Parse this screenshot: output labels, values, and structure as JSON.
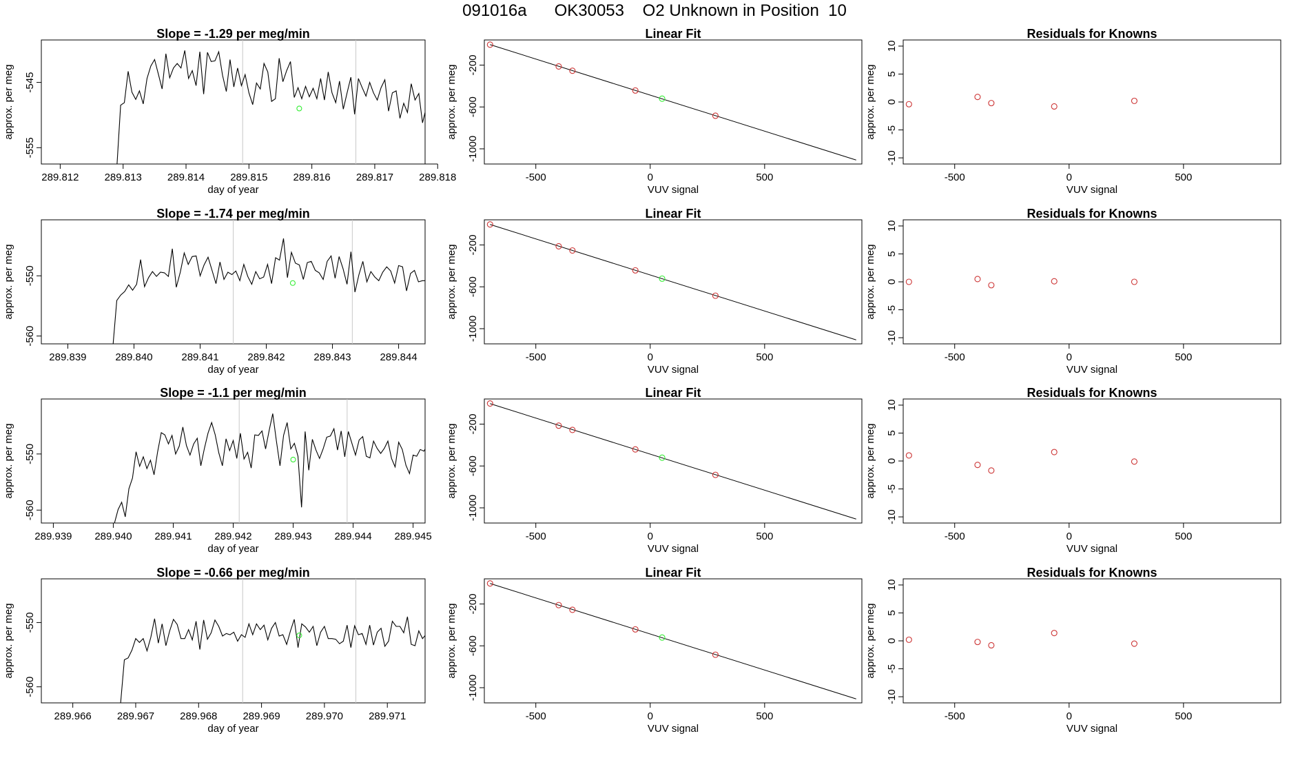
{
  "page_title": "091016a      OK30053    O2 Unknown in Position  10",
  "colors": {
    "trace": "#000000",
    "known_point": "#cc3333",
    "unknown_point": "#33ee33",
    "marker_line": "#c8c8c8",
    "fit_line": "#000000"
  },
  "chart_data": [
    {
      "type": "line",
      "title": "Slope =  -1.29  per meg/min",
      "xlabel": "day of year",
      "ylabel": "approx. per meg",
      "xlim": [
        289.8117,
        289.8178
      ],
      "ylim": [
        -557.5,
        -538.5
      ],
      "xticks": [
        "289.812",
        "289.813",
        "289.814",
        "289.815",
        "289.816",
        "289.817",
        "289.818"
      ],
      "yticks": [
        "-545",
        "-555"
      ],
      "markers_x": [
        289.8149,
        289.8167
      ],
      "unknown_point": {
        "x": 289.8158,
        "y": -549
      },
      "series": [
        {
          "values_start": 289.8129,
          "values_step": 6e-05,
          "values": [
            -558,
            -548.5,
            -548.1,
            -543.3,
            -546.5,
            -547.6,
            -546.3,
            -548.3,
            -544.4,
            -542.5,
            -541.5,
            -543.7,
            -546,
            -540.6,
            -544.3,
            -542.8,
            -542.1,
            -542.8,
            -540.1,
            -544.4,
            -543.2,
            -545.5,
            -540.3,
            -546.8,
            -540.4,
            -541.8,
            -541.7,
            -540.3,
            -543.9,
            -546.4,
            -541.5,
            -545.7,
            -542.8,
            -545.5,
            -543.8,
            -546.6,
            -548.4,
            -545.1,
            -546,
            -542.1,
            -543.4,
            -547.9,
            -547.5,
            -541.3,
            -544.9,
            -543.2,
            -541.8,
            -547.3,
            -545.8,
            -547.5,
            -545.6,
            -547.2,
            -545.9,
            -547.5,
            -544.4,
            -547.7,
            -543.4,
            -546.6,
            -548.1,
            -544.8,
            -549.1,
            -546.6,
            -544.2,
            -549.9,
            -544.4,
            -545.8,
            -547.1,
            -545,
            -546.6,
            -547.7,
            -545.8,
            -544.6,
            -549.4,
            -546.6,
            -546.3,
            -550.5,
            -548.2,
            -549.6,
            -545.2,
            -547.7,
            -546.7,
            -551.2,
            -548.8,
            -544,
            -550.7,
            -547.8,
            -547.5,
            -548.8,
            -548.9,
            -549.2,
            -546.6,
            -550,
            -550.2,
            -548.6,
            -549.7,
            -547.8,
            -545.4,
            -545.7,
            -556,
            -557.8,
            -549.3,
            -550.5,
            -550.3,
            -551.7,
            -550.3,
            -553.8,
            -552.1,
            -550.5,
            -549.5,
            -554.4,
            -554.1,
            -549.3,
            -551,
            -553.7,
            -551.6,
            -554.1,
            -549.3,
            -548.4,
            -552.2,
            -552.2,
            -550.5,
            -549.1,
            -552.8,
            -553.8,
            -557
          ]
        }
      ]
    },
    {
      "type": "scatter",
      "title": "Linear Fit",
      "xlabel": "VUV signal",
      "ylabel": "approx. per meg",
      "xlim": [
        -725,
        925
      ],
      "ylim": [
        -1145,
        40
      ],
      "xticks": [
        "-500",
        "0",
        "500"
      ],
      "yticks": [
        "-200",
        "-600",
        "-1000"
      ],
      "fit_line": {
        "x": [
          -700,
          900
        ],
        "y": [
          -4.4,
          -1107
        ]
      },
      "knowns": {
        "x": [
          -700,
          -400,
          -340,
          -65,
          285
        ],
        "y": [
          -5,
          -213,
          -254,
          -443,
          -684
        ]
      },
      "unknown": {
        "x": 52,
        "y": -521
      }
    },
    {
      "type": "scatter",
      "title": "Residuals for Knowns",
      "xlabel": "VUV signal",
      "ylabel": "approx. per meg",
      "xlim": [
        -725,
        925
      ],
      "ylim": [
        -11.1,
        11.1
      ],
      "xticks": [
        "-500",
        "0",
        "500"
      ],
      "yticks": [
        "10",
        "5",
        "0",
        "-5",
        "-10"
      ],
      "knowns": {
        "x": [
          -700,
          -400,
          -340,
          -65,
          285
        ],
        "y": [
          -0.4,
          0.9,
          -0.2,
          -0.8,
          0.2
        ]
      }
    },
    {
      "type": "line",
      "title": "Slope =  -1.74  per meg/min",
      "xlabel": "day of year",
      "ylabel": "approx. per meg",
      "xlim": [
        289.8386,
        289.8444
      ],
      "ylim": [
        -561.3,
        -540.7
      ],
      "xticks": [
        "289.839",
        "289.840",
        "289.841",
        "289.842",
        "289.843",
        "289.844"
      ],
      "yticks": [
        "-550",
        "-560"
      ],
      "markers_x": [
        289.8415,
        289.8433
      ],
      "unknown_point": {
        "x": 289.8424,
        "y": -551.2
      },
      "series": [
        {
          "values_start": 289.83968,
          "values_step": 6e-05,
          "values": [
            -562,
            -554.1,
            -553.2,
            -552.6,
            -551.5,
            -552.4,
            -551.4,
            -547.3,
            -551.8,
            -550.3,
            -549.3,
            -550.1,
            -549.4,
            -549.5,
            -550.1,
            -545.5,
            -551.9,
            -549.4,
            -546.2,
            -548.1,
            -546.8,
            -546.7,
            -550,
            -548.2,
            -546.9,
            -549.1,
            -551.3,
            -547.7,
            -550.6,
            -549.4,
            -549.8,
            -549.2,
            -550.8,
            -548.1,
            -550.1,
            -551.4,
            -549.3,
            -550.5,
            -550.2,
            -548.1,
            -551.3,
            -547,
            -547.4,
            -543.8,
            -550.3,
            -546.1,
            -547.9,
            -548.2,
            -550.6,
            -547.8,
            -547.6,
            -549.1,
            -549.5,
            -550.6,
            -547.6,
            -546.7,
            -550.4,
            -546.8,
            -548.8,
            -551.4,
            -546,
            -552.7,
            -549.8,
            -547.6,
            -551,
            -549.3,
            -550.2,
            -550.8,
            -549.4,
            -548.5,
            -549.2,
            -551.2,
            -548.3,
            -548.5,
            -552.5,
            -549.6,
            -549.1,
            -551,
            -550.8,
            -550.8,
            -550.6,
            -549.8,
            -552.3,
            -549.6,
            -551.4,
            -552.6,
            -550,
            -552.8,
            -553.6,
            -551.6,
            -554.5,
            -551.2,
            -550.4,
            -552.6,
            -551.1,
            -549.5,
            -550.7,
            -553.1,
            -554.6,
            -552.5,
            -553.5,
            -549.3,
            -551.9,
            -554.1,
            -550.7,
            -553.7,
            -548.7,
            -550.6,
            -552.4,
            -553.6,
            -551.6,
            -554.6,
            -551,
            -553.2,
            -550.2,
            -553.9,
            -552.3,
            -553.7,
            -555.3,
            -552.8,
            -551.1,
            -553.7,
            -553.6,
            -561.8
          ]
        }
      ]
    },
    {
      "type": "scatter",
      "title": "Linear Fit",
      "xlabel": "VUV signal",
      "ylabel": "approx. per meg",
      "xlim": [
        -725,
        925
      ],
      "ylim": [
        -1145,
        40
      ],
      "xticks": [
        "-500",
        "0",
        "500"
      ],
      "yticks": [
        "-200",
        "-600",
        "-1000"
      ],
      "fit_line": {
        "x": [
          -700,
          900
        ],
        "y": [
          -4.4,
          -1107
        ]
      },
      "knowns": {
        "x": [
          -700,
          -400,
          -340,
          -65,
          285
        ],
        "y": [
          -4,
          -213,
          -253,
          -443,
          -685
        ]
      },
      "unknown": {
        "x": 52,
        "y": -522
      }
    },
    {
      "type": "scatter",
      "title": "Residuals for Knowns",
      "xlabel": "VUV signal",
      "ylabel": "approx. per meg",
      "xlim": [
        -725,
        925
      ],
      "ylim": [
        -11.1,
        11.1
      ],
      "xticks": [
        "-500",
        "0",
        "500"
      ],
      "yticks": [
        "10",
        "5",
        "0",
        "-5",
        "-10"
      ],
      "knowns": {
        "x": [
          -700,
          -400,
          -340,
          -65,
          285
        ],
        "y": [
          0,
          0.5,
          -0.6,
          0.1,
          0
        ]
      }
    },
    {
      "type": "line",
      "title": "Slope =  -1.1  per meg/min",
      "xlabel": "day of year",
      "ylabel": "approx. per meg",
      "xlim": [
        289.9388,
        289.9452
      ],
      "ylim": [
        -562.3,
        -540.2
      ],
      "xticks": [
        "289.939",
        "289.940",
        "289.941",
        "289.942",
        "289.943",
        "289.944",
        "289.945"
      ],
      "yticks": [
        "-550",
        "-560"
      ],
      "markers_x": [
        289.9421,
        289.9439
      ],
      "unknown_point": {
        "x": 289.943,
        "y": -551
      },
      "series": [
        {
          "values_start": 289.94002,
          "values_step": 6e-05,
          "values": [
            -562.3,
            -559.9,
            -558.6,
            -561.2,
            -556.2,
            -554.3,
            -549.6,
            -552.2,
            -550.5,
            -552.6,
            -551.1,
            -553.7,
            -549.6,
            -546.2,
            -546.6,
            -548.2,
            -546.7,
            -550,
            -548.6,
            -545.2,
            -548.5,
            -550.2,
            -548.2,
            -547.2,
            -552.1,
            -549,
            -546.3,
            -544.4,
            -546.6,
            -549.8,
            -552.1,
            -547.3,
            -549.4,
            -547.6,
            -550.8,
            -546.3,
            -550.9,
            -549.7,
            -552.5,
            -546.6,
            -546.7,
            -545.9,
            -549.1,
            -545.8,
            -542.8,
            -547.7,
            -552.1,
            -546.7,
            -544.4,
            -549.1,
            -548.1,
            -550.4,
            -559.5,
            -546,
            -552.9,
            -547.4,
            -549.3,
            -550.8,
            -549.1,
            -547,
            -546.8,
            -545.5,
            -549.3,
            -545.9,
            -550.5,
            -546,
            -548.1,
            -550.2,
            -547.5,
            -546.9,
            -550.4,
            -550.7,
            -547.7,
            -549,
            -549.9,
            -549,
            -547.7,
            -550.8,
            -552.3,
            -547.9,
            -549.2,
            -552,
            -553.5,
            -550.2,
            -550.4,
            -549.2,
            -549.5,
            -548.4,
            -552.1,
            -551.8,
            -552.8,
            -553.3,
            -549.7,
            -553.1,
            -553.3,
            -550.3,
            -551.7,
            -553.6,
            -549.2,
            -550.5,
            -549.4,
            -551.6,
            -550.8,
            -548.8,
            -551.3,
            -562.3,
            -551,
            -553.2,
            -550.4,
            -555.7,
            -554.7,
            -547.7,
            -553.6,
            -548.6,
            -547.8,
            -553.6,
            -554.9,
            -549.7,
            -551.5,
            -552.7,
            -555.1,
            -551.4,
            -552.9,
            -553.7,
            -553,
            -551.8,
            -562.3
          ]
        }
      ]
    },
    {
      "type": "scatter",
      "title": "Linear Fit",
      "xlabel": "VUV signal",
      "ylabel": "approx. per meg",
      "xlim": [
        -725,
        925
      ],
      "ylim": [
        -1145,
        40
      ],
      "xticks": [
        "-500",
        "0",
        "500"
      ],
      "yticks": [
        "-200",
        "-600",
        "-1000"
      ],
      "fit_line": {
        "x": [
          -700,
          900
        ],
        "y": [
          -4.4,
          -1107
        ]
      },
      "knowns": {
        "x": [
          -700,
          -400,
          -340,
          -65,
          285
        ],
        "y": [
          -3,
          -215,
          -256,
          -442,
          -685
        ]
      },
      "unknown": {
        "x": 52,
        "y": -521
      }
    },
    {
      "type": "scatter",
      "title": "Residuals for Knowns",
      "xlabel": "VUV signal",
      "ylabel": "approx. per meg",
      "xlim": [
        -725,
        925
      ],
      "ylim": [
        -11.1,
        11.1
      ],
      "xticks": [
        "-500",
        "0",
        "500"
      ],
      "yticks": [
        "10",
        "5",
        "0",
        "-5",
        "-10"
      ],
      "knowns": {
        "x": [
          -700,
          -400,
          -340,
          -65,
          285
        ],
        "y": [
          1,
          -0.7,
          -1.7,
          1.6,
          -0.1
        ]
      }
    },
    {
      "type": "line",
      "title": "Slope =  -0.66  per meg/min",
      "xlabel": "day of year",
      "ylabel": "approx. per meg",
      "xlim": [
        289.9655,
        289.9716
      ],
      "ylim": [
        -562.5,
        -543.2
      ],
      "xticks": [
        "289.966",
        "289.967",
        "289.968",
        "289.969",
        "289.970",
        "289.971"
      ],
      "yticks": [
        "-550",
        "-560"
      ],
      "markers_x": [
        289.9687,
        289.9705
      ],
      "unknown_point": {
        "x": 289.9696,
        "y": -552
      },
      "series": [
        {
          "values_start": 289.96676,
          "values_step": 6e-05,
          "values": [
            -562.5,
            -555.8,
            -555.5,
            -554.3,
            -552.5,
            -553.1,
            -552.5,
            -554.4,
            -552.3,
            -549.4,
            -553.2,
            -550.2,
            -553.6,
            -551.3,
            -549.5,
            -550.3,
            -552.5,
            -552.5,
            -551.1,
            -552.7,
            -549.8,
            -554.2,
            -549.6,
            -552.6,
            -551.6,
            -549.6,
            -550.6,
            -552.1,
            -551.7,
            -551.9,
            -551.5,
            -552.9,
            -551.9,
            -552.3,
            -550.2,
            -551.9,
            -550.2,
            -551.1,
            -550.4,
            -552.7,
            -550.9,
            -550,
            -552.1,
            -551.9,
            -553.4,
            -551.3,
            -549.5,
            -553.9,
            -550.2,
            -550.7,
            -551.5,
            -550.6,
            -553.6,
            -551.5,
            -550.6,
            -552.5,
            -552.5,
            -552.6,
            -553.3,
            -552.9,
            -550.4,
            -553.9,
            -550.5,
            -551.9,
            -551.7,
            -553.4,
            -550.4,
            -553.5,
            -551.5,
            -550.9,
            -553.7,
            -552.9,
            -549.8,
            -550.6,
            -550.6,
            -551.6,
            -549.1,
            -553.4,
            -553.6,
            -551.3,
            -552.5,
            -551.8,
            -549.4,
            -552.3,
            -550.3,
            -552.6,
            -554.9,
            -550.9,
            -552,
            -551.8,
            -551.6,
            -553.8,
            -551.5,
            -550.7,
            -551.6,
            -552.3,
            -554.6,
            -551.1,
            -552.1,
            -549.6,
            -552.6,
            -553.3,
            -552.1,
            -551.7,
            -551.4,
            -557.5,
            -553.8,
            -555.9,
            -551.5,
            -553.5,
            -555.9,
            -551.7,
            -554.8,
            -555.2,
            -551,
            -553.4,
            -554.9,
            -552.7,
            -554.5,
            -553.2,
            -556.2,
            -553.6,
            -557.2,
            -562.5
          ]
        }
      ]
    },
    {
      "type": "scatter",
      "title": "Linear Fit",
      "xlabel": "VUV signal",
      "ylabel": "approx. per meg",
      "xlim": [
        -725,
        925
      ],
      "ylim": [
        -1145,
        40
      ],
      "xticks": [
        "-500",
        "0",
        "500"
      ],
      "yticks": [
        "-200",
        "-600",
        "-1000"
      ],
      "fit_line": {
        "x": [
          -700,
          900
        ],
        "y": [
          -4.4,
          -1107
        ]
      },
      "knowns": {
        "x": [
          -700,
          -400,
          -340,
          -65,
          285
        ],
        "y": [
          -4,
          -211,
          -256,
          -443,
          -685
        ]
      },
      "unknown": {
        "x": 52,
        "y": -521
      }
    },
    {
      "type": "scatter",
      "title": "Residuals for Knowns",
      "xlabel": "VUV signal",
      "ylabel": "approx. per meg",
      "xlim": [
        -725,
        925
      ],
      "ylim": [
        -11.1,
        11.1
      ],
      "xticks": [
        "-500",
        "0",
        "500"
      ],
      "yticks": [
        "10",
        "5",
        "0",
        "-5",
        "-10"
      ],
      "knowns": {
        "x": [
          -700,
          -400,
          -340,
          -65,
          285
        ],
        "y": [
          0.2,
          -0.2,
          -0.8,
          1.4,
          -0.5
        ]
      }
    }
  ]
}
